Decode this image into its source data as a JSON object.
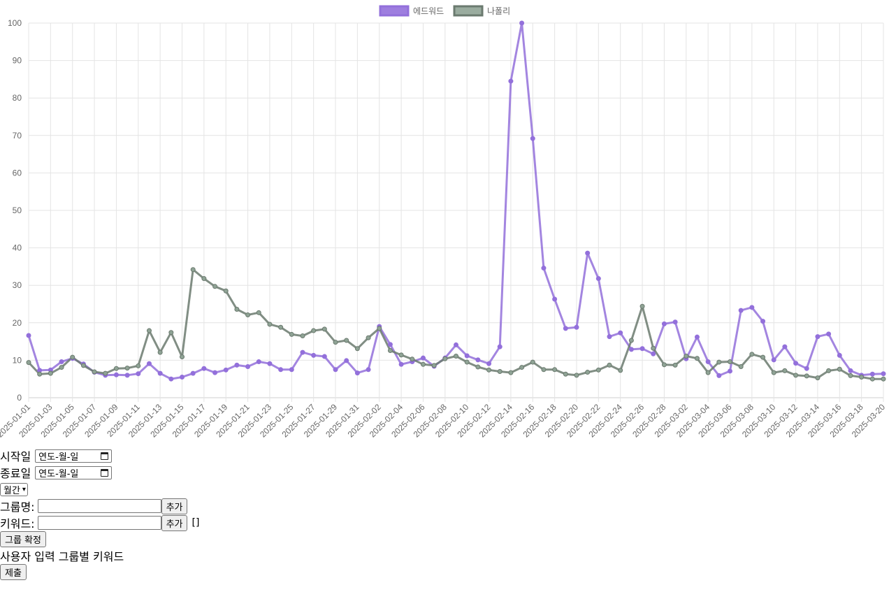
{
  "chart_data": {
    "type": "line",
    "title": "",
    "xlabel": "",
    "ylabel": "",
    "ylim": [
      0,
      100
    ],
    "yticks": [
      0,
      10,
      20,
      30,
      40,
      50,
      60,
      70,
      80,
      90,
      100
    ],
    "grid": true,
    "legend_position": "top-center",
    "x": [
      "2025-01-01",
      "2025-01-02",
      "2025-01-03",
      "2025-01-04",
      "2025-01-05",
      "2025-01-06",
      "2025-01-07",
      "2025-01-08",
      "2025-01-09",
      "2025-01-10",
      "2025-01-11",
      "2025-01-12",
      "2025-01-13",
      "2025-01-14",
      "2025-01-15",
      "2025-01-16",
      "2025-01-17",
      "2025-01-18",
      "2025-01-19",
      "2025-01-20",
      "2025-01-21",
      "2025-01-22",
      "2025-01-23",
      "2025-01-24",
      "2025-01-25",
      "2025-01-26",
      "2025-01-27",
      "2025-01-28",
      "2025-01-29",
      "2025-01-30",
      "2025-01-31",
      "2025-02-01",
      "2025-02-02",
      "2025-02-03",
      "2025-02-04",
      "2025-02-05",
      "2025-02-06",
      "2025-02-07",
      "2025-02-08",
      "2025-02-09",
      "2025-02-10",
      "2025-02-11",
      "2025-02-12",
      "2025-02-13",
      "2025-02-14",
      "2025-02-15",
      "2025-02-16",
      "2025-02-17",
      "2025-02-18",
      "2025-02-19",
      "2025-02-20",
      "2025-02-21",
      "2025-02-22",
      "2025-02-23",
      "2025-02-24",
      "2025-02-25",
      "2025-02-26",
      "2025-02-27",
      "2025-02-28",
      "2025-03-01",
      "2025-03-02",
      "2025-03-03",
      "2025-03-04",
      "2025-03-05",
      "2025-03-06",
      "2025-03-07",
      "2025-03-08",
      "2025-03-09",
      "2025-03-10",
      "2025-03-11",
      "2025-03-12",
      "2025-03-13",
      "2025-03-14",
      "2025-03-15",
      "2025-03-16",
      "2025-03-17",
      "2025-03-18",
      "2025-03-19",
      "2025-03-20"
    ],
    "xtick_labels": [
      "2025-01-01",
      "2025-01-03",
      "2025-01-05",
      "2025-01-07",
      "2025-01-09",
      "2025-01-11",
      "2025-01-13",
      "2025-01-15",
      "2025-01-17",
      "2025-01-19",
      "2025-01-21",
      "2025-01-23",
      "2025-01-25",
      "2025-01-27",
      "2025-01-29",
      "2025-01-31",
      "2025-02-02",
      "2025-02-04",
      "2025-02-06",
      "2025-02-08",
      "2025-02-10",
      "2025-02-12",
      "2025-02-14",
      "2025-02-16",
      "2025-02-18",
      "2025-02-20",
      "2025-02-22",
      "2025-02-24",
      "2025-02-26",
      "2025-02-28",
      "2025-03-02",
      "2025-03-04",
      "2025-03-06",
      "2025-03-08",
      "2025-03-10",
      "2025-03-12",
      "2025-03-14",
      "2025-03-16",
      "2025-03-18",
      "2025-03-20"
    ],
    "series": [
      {
        "name": "에드워드",
        "color": "#9370DB",
        "values": [
          16.6,
          7.3,
          7.4,
          9.6,
          10.5,
          9.0,
          6.8,
          6.0,
          6.1,
          6.0,
          6.4,
          9.1,
          6.5,
          5.0,
          5.5,
          6.5,
          7.8,
          6.7,
          7.4,
          8.7,
          8.3,
          9.6,
          9.1,
          7.5,
          7.5,
          12.1,
          11.3,
          11.0,
          7.5,
          9.9,
          6.6,
          7.5,
          19.0,
          14.2,
          8.9,
          9.6,
          10.6,
          8.4,
          10.6,
          14.1,
          11.2,
          10.1,
          9.1,
          13.6,
          84.5,
          100,
          69.2,
          34.6,
          26.3,
          18.5,
          18.8,
          38.6,
          31.8,
          16.3,
          17.3,
          12.9,
          13.1,
          11.7,
          19.7,
          20.2,
          10.4,
          16.2,
          9.6,
          5.9,
          7.1,
          23.3,
          24.1,
          20.4,
          10.1,
          13.6,
          9.2,
          7.8,
          16.3,
          17.0,
          11.3,
          7.2,
          6.0,
          6.3,
          6.4
        ],
        "marker_color": "#9370DB"
      },
      {
        "name": "나폴리",
        "color": "#6B7A6F",
        "values": [
          9.4,
          6.3,
          6.5,
          8.1,
          10.8,
          8.6,
          6.9,
          6.5,
          7.8,
          7.9,
          8.5,
          17.9,
          12.1,
          17.4,
          10.9,
          34.2,
          31.8,
          29.7,
          28.5,
          23.6,
          22.1,
          22.7,
          19.6,
          18.8,
          16.9,
          16.5,
          17.9,
          18.3,
          14.8,
          15.3,
          13.1,
          16.0,
          18.5,
          12.6,
          11.4,
          10.3,
          8.9,
          8.6,
          10.4,
          11.1,
          9.5,
          8.2,
          7.4,
          7.0,
          6.7,
          8.1,
          9.5,
          7.5,
          7.5,
          6.3,
          6.0,
          6.8,
          7.4,
          8.7,
          7.3,
          15.3,
          24.4,
          13.2,
          8.8,
          8.7,
          11.1,
          10.5,
          6.7,
          9.5,
          9.6,
          8.3,
          11.6,
          10.8,
          6.7,
          7.2,
          6.0,
          5.8,
          5.3,
          7.2,
          7.6,
          5.9,
          5.5,
          5.0,
          5.0
        ],
        "marker_color": "#8FA395"
      }
    ]
  },
  "form": {
    "start_label": "시작일",
    "start_placeholder": "연도-월-일",
    "end_label": "종료일",
    "end_placeholder": "연도-월-일",
    "period_selected": "월간",
    "group_name_label": "그룹명:",
    "group_add_button": "추가",
    "keyword_label": "키워드:",
    "keyword_add_button": "추가",
    "keyword_list_text": "[]",
    "confirm_group_button": "그룹 확정",
    "section_heading": "사용자 입력 그룹별 키워드",
    "submit_button": "제출"
  }
}
